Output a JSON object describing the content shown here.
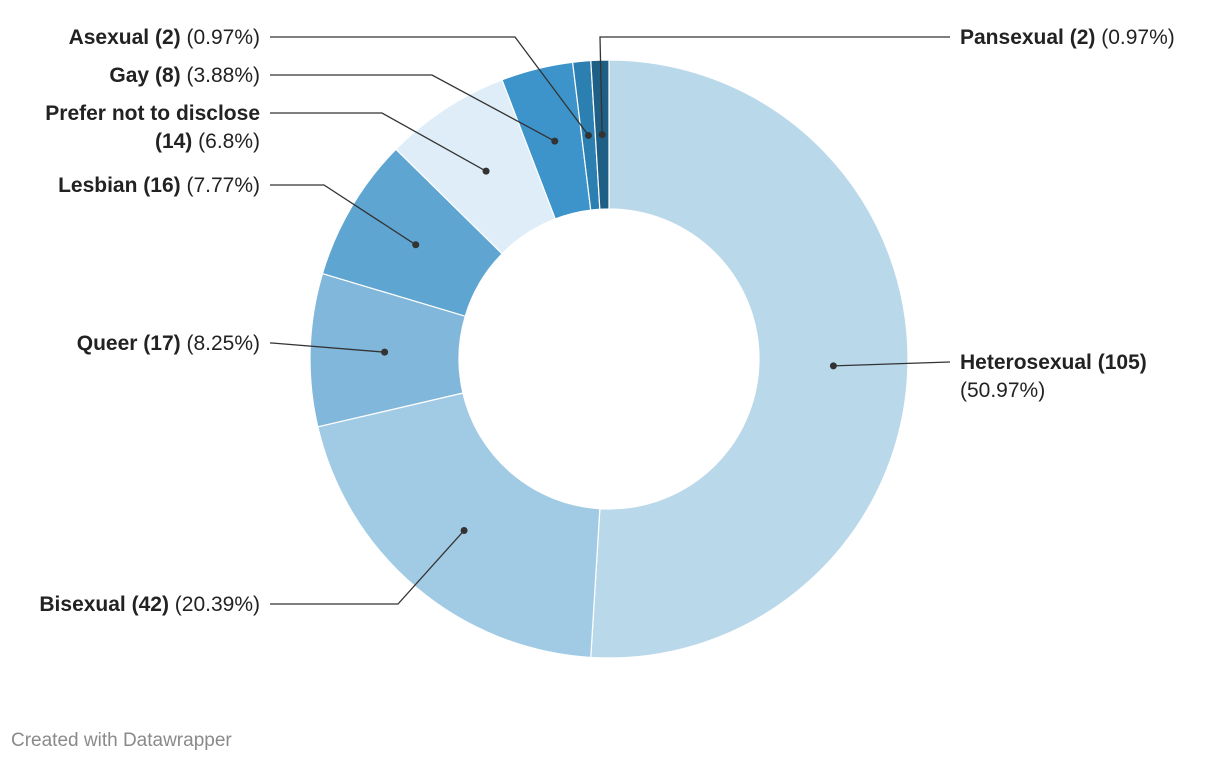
{
  "chart_data": {
    "type": "pie",
    "donut": true,
    "slices": [
      {
        "name": "Heterosexual",
        "count": 105,
        "percent": "50.97%",
        "color": "#b9d8ea"
      },
      {
        "name": "Bisexual",
        "count": 42,
        "percent": "20.39%",
        "color": "#a1cbe4"
      },
      {
        "name": "Queer",
        "count": 17,
        "percent": "8.25%",
        "color": "#80b7da"
      },
      {
        "name": "Lesbian",
        "count": 16,
        "percent": "7.77%",
        "color": "#5fa5d2"
      },
      {
        "name": "Prefer not to disclose",
        "count": 14,
        "percent": "6.8%",
        "color": "#deedf7"
      },
      {
        "name": "Gay",
        "count": 8,
        "percent": "3.88%",
        "color": "#3c94cb"
      },
      {
        "name": "Asexual",
        "count": 2,
        "percent": "0.97%",
        "color": "#2b7fb1"
      },
      {
        "name": "Pansexual",
        "count": 2,
        "percent": "0.97%",
        "color": "#1f5f85"
      }
    ]
  },
  "footer": {
    "credit": "Created with Datawrapper"
  }
}
